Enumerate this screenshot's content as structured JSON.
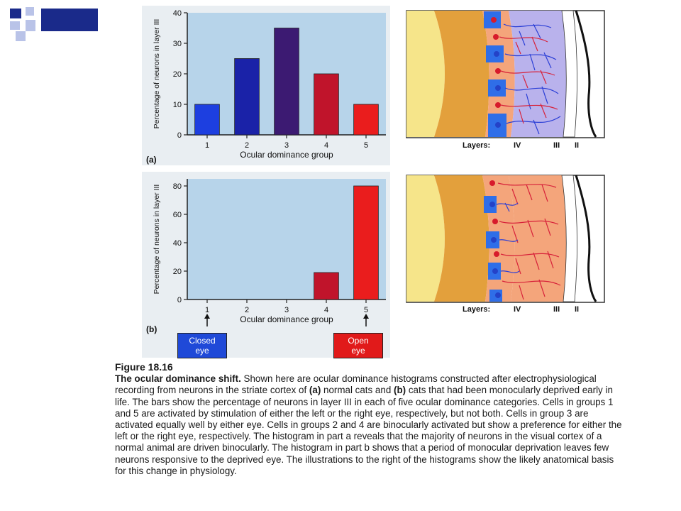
{
  "colors": {
    "plot_bg": "#b7d4ea",
    "group1": "#1d3fe0",
    "group2": "#1a22a8",
    "group3": "#3c1a72",
    "group4": "#c0142b",
    "group5": "#ea1d1d",
    "closed_eye": "#1f49d8",
    "open_eye": "#e11a1a",
    "cortex_orange": "#e3a03c",
    "cortex_yellow": "#f6e58a",
    "layer_blue": "#2f6ee8",
    "layer_salmon": "#f4a57b",
    "lavender": "#b9b2ec"
  },
  "chart_data": [
    {
      "type": "bar",
      "panel_label": "(a)",
      "categories": [
        "1",
        "2",
        "3",
        "4",
        "5"
      ],
      "values": [
        10,
        25,
        35,
        20,
        10
      ],
      "xlabel": "Ocular dominance group",
      "ylabel": "Percentage of neurons in layer III",
      "ylim": [
        0,
        40
      ],
      "yticks": [
        "0",
        "10",
        "20",
        "30",
        "40"
      ],
      "grid": false
    },
    {
      "type": "bar",
      "panel_label": "(b)",
      "categories": [
        "1",
        "2",
        "3",
        "4",
        "5"
      ],
      "values": [
        0,
        0,
        0,
        19,
        80
      ],
      "xlabel": "Ocular dominance group",
      "ylabel": "Percentage of neurons in layer III",
      "ylim": [
        0,
        85
      ],
      "yticks": [
        "0",
        "20",
        "40",
        "60",
        "80"
      ],
      "grid": false,
      "markers": [
        {
          "category": "1",
          "label": "Closed eye",
          "line1": "Closed",
          "line2": "eye"
        },
        {
          "category": "5",
          "label": "Open eye",
          "line1": "Open",
          "line2": "eye"
        }
      ]
    }
  ],
  "illustrations": {
    "a": {
      "layers_label": "Layers:",
      "layer_iv": "IV",
      "layer_iii": "III",
      "layer_ii": "II"
    },
    "b": {
      "layers_label": "Layers:",
      "layer_iv": "IV",
      "layer_iii": "III",
      "layer_ii": "II"
    }
  },
  "caption": {
    "figure_number": "Figure 18.16",
    "title": "The ocular dominance shift.",
    "seg1": " Shown here are ocular dominance histograms constructed after electrophysiological recording from neurons in the striate cortex of ",
    "a_ref": "(a)",
    "seg2": " normal cats and ",
    "b_ref": "(b)",
    "seg3": " cats that had been monocularly deprived early in life. The bars show the percentage of neurons in layer III in each of five ocular dominance categories. Cells in groups 1 and 5 are activated by stimulation of either the left or the right eye, respectively, but not both. Cells in group 3 are activated equally well by either eye. Cells in groups 2 and 4 are binocularly activated but show a preference for either the left or the right eye, respectively. The histogram in part a reveals that the majority of neurons in the visual cortex of a normal animal are driven binocularly. The histogram in part b shows that a period of monocular deprivation leaves few neurons responsive to the deprived eye. The illustrations to the right of the histograms show the likely anatomical basis for this change in physiology."
  }
}
